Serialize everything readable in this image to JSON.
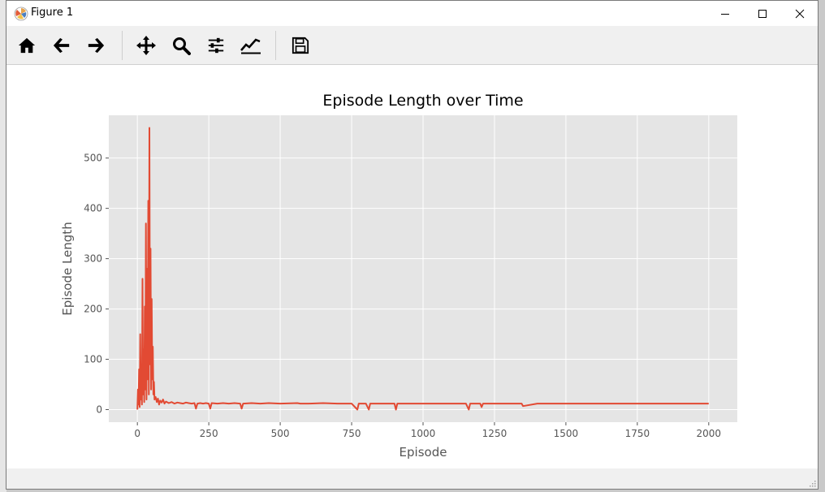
{
  "window": {
    "title": "Figure 1"
  },
  "toolbar": {
    "tools": [
      {
        "name": "home-icon",
        "tooltip": "Home"
      },
      {
        "name": "back-arrow-icon",
        "tooltip": "Back"
      },
      {
        "name": "forward-arrow-icon",
        "tooltip": "Forward"
      },
      {
        "name": "pan-icon",
        "tooltip": "Pan"
      },
      {
        "name": "zoom-icon",
        "tooltip": "Zoom"
      },
      {
        "name": "subplots-icon",
        "tooltip": "Subplots"
      },
      {
        "name": "customize-icon",
        "tooltip": "Customize"
      },
      {
        "name": "save-icon",
        "tooltip": "Save"
      }
    ]
  },
  "colors": {
    "plot_bg": "#e5e5e5",
    "line": "#e24a33",
    "grid": "#ffffff",
    "text": "#555555"
  },
  "chart_data": {
    "type": "line",
    "title": "Episode Length over Time",
    "xlabel": "Episode",
    "ylabel": "Episode Length",
    "xlim": [
      -100,
      2100
    ],
    "ylim": [
      -25,
      585
    ],
    "x_ticks": [
      0,
      250,
      500,
      750,
      1000,
      1250,
      1500,
      1750,
      2000
    ],
    "y_ticks": [
      0,
      100,
      200,
      300,
      400,
      500
    ],
    "x_tick_labels": [
      "0",
      "250",
      "500",
      "750",
      "1000",
      "1250",
      "1500",
      "1750",
      "2000"
    ],
    "y_tick_labels": [
      "0",
      "100",
      "200",
      "300",
      "400",
      "500"
    ],
    "grid": true,
    "series": [
      {
        "x": [
          0,
          2,
          4,
          6,
          8,
          10,
          12,
          14,
          16,
          18,
          20,
          22,
          24,
          26,
          28,
          30,
          32,
          34,
          36,
          38,
          40,
          42,
          44,
          46,
          48,
          50,
          52,
          54,
          56,
          58,
          60,
          64,
          68,
          72,
          76,
          80,
          85,
          90,
          95,
          100,
          110,
          120,
          130,
          140,
          150,
          160,
          170,
          180,
          190,
          200,
          205,
          210,
          220,
          230,
          240,
          250,
          255,
          260,
          280,
          300,
          320,
          340,
          360,
          365,
          370,
          400,
          430,
          460,
          500,
          560,
          570,
          600,
          650,
          700,
          750,
          770,
          775,
          800,
          810,
          815,
          850,
          900,
          905,
          910,
          950,
          1000,
          1050,
          1100,
          1150,
          1160,
          1165,
          1170,
          1200,
          1205,
          1210,
          1250,
          1300,
          1345,
          1350,
          1400,
          1500,
          1600,
          1700,
          1800,
          1900,
          2000
        ],
        "y": [
          0,
          40,
          10,
          80,
          5,
          150,
          20,
          60,
          10,
          260,
          30,
          120,
          15,
          205,
          40,
          370,
          20,
          280,
          60,
          415,
          30,
          560,
          90,
          320,
          40,
          220,
          60,
          125,
          30,
          55,
          20,
          25,
          15,
          22,
          10,
          18,
          14,
          20,
          12,
          16,
          13,
          15,
          12,
          14,
          13,
          12,
          14,
          13,
          12,
          13,
          2,
          12,
          13,
          12,
          13,
          12,
          2,
          13,
          12,
          13,
          12,
          13,
          12,
          2,
          12,
          13,
          12,
          13,
          12,
          13,
          12,
          12,
          13,
          12,
          12,
          0,
          12,
          12,
          0,
          12,
          12,
          12,
          0,
          12,
          12,
          12,
          12,
          12,
          12,
          0,
          12,
          12,
          12,
          5,
          12,
          12,
          12,
          12,
          7,
          12,
          12,
          12,
          12,
          12,
          12,
          12
        ]
      }
    ]
  }
}
